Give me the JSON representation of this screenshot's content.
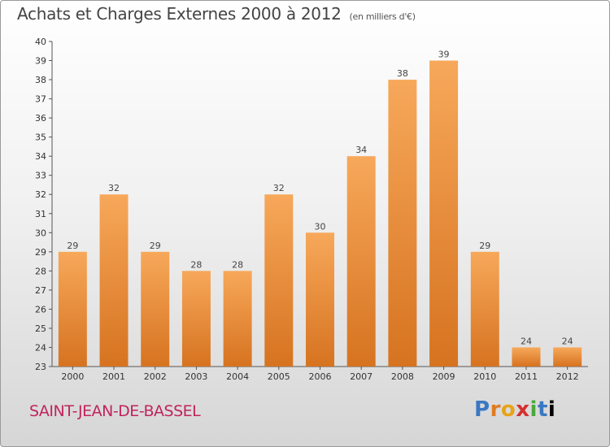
{
  "header": {
    "title": "Achats et Charges Externes 2000 à 2012",
    "unit": "(en milliers d'€)"
  },
  "footer": {
    "commune": "SAINT-JEAN-DE-BASSEL",
    "logo_letters": [
      "P",
      "r",
      "o",
      "x",
      "i",
      "t",
      "i"
    ]
  },
  "colors": {
    "bar_light": "#f7a85a",
    "bar_dark": "#d67320",
    "commune": "#c0245c"
  },
  "chart_data": {
    "type": "bar",
    "title": "Achats et Charges Externes 2000 à 2012",
    "unit_note": "(en milliers d'€)",
    "categories": [
      "2000",
      "2001",
      "2002",
      "2003",
      "2004",
      "2005",
      "2006",
      "2007",
      "2008",
      "2009",
      "2010",
      "2011",
      "2012"
    ],
    "values": [
      29,
      32,
      29,
      28,
      28,
      32,
      30,
      34,
      38,
      39,
      29,
      24,
      24
    ],
    "ylim": [
      23,
      40
    ],
    "yticks": [
      23,
      24,
      25,
      26,
      27,
      28,
      29,
      30,
      31,
      32,
      33,
      34,
      35,
      36,
      37,
      38,
      39,
      40
    ],
    "grid": false,
    "data_labels": true
  }
}
